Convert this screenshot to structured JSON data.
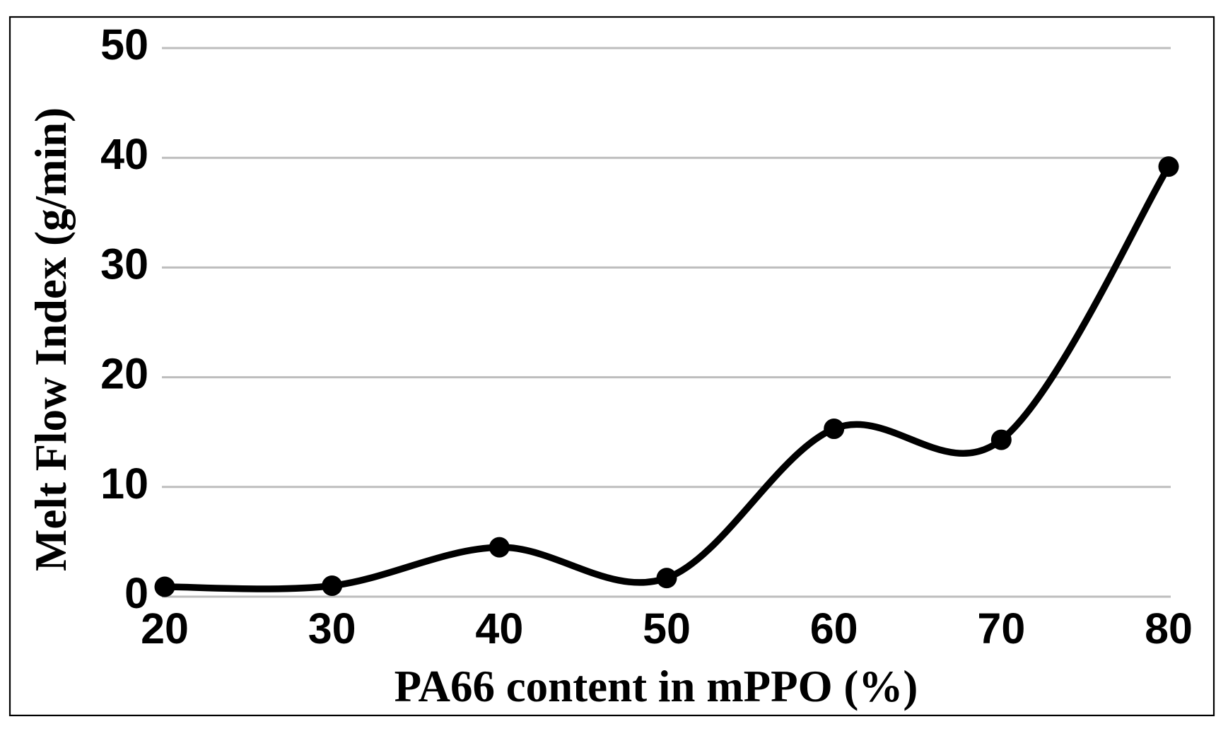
{
  "figure": {
    "background": "#ffffff",
    "border_color": "#000000",
    "text_color": "#000000"
  },
  "chart_data": {
    "type": "line",
    "title": "",
    "xlabel": "PA66 content in mPPO (%)",
    "ylabel": "Melt Flow Index (g/min)",
    "series": [
      {
        "name": "Melt Flow Index",
        "x": [
          20,
          30,
          40,
          50,
          60,
          70,
          80
        ],
        "y": [
          0.9,
          1.0,
          4.5,
          1.7,
          15.3,
          14.3,
          39.2
        ],
        "color": "#000000",
        "marker": "filled-circle",
        "smooth": true
      }
    ],
    "xticks": [
      20,
      30,
      40,
      50,
      60,
      70,
      80
    ],
    "yticks": [
      0,
      10,
      20,
      30,
      40,
      50
    ],
    "xlim": [
      20,
      80
    ],
    "ylim": [
      0,
      50
    ],
    "grid": "horizontal-only",
    "gridline_color": "#BDBDBD",
    "legend": "none"
  }
}
